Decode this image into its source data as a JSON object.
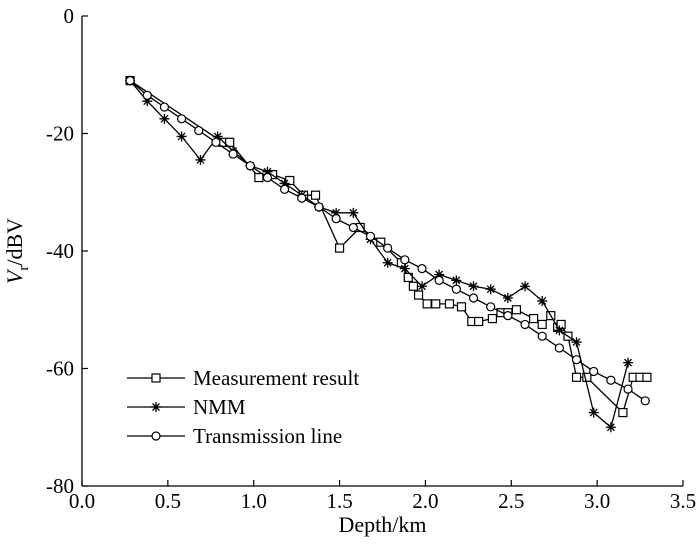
{
  "chart_data": {
    "type": "line",
    "title": "",
    "xlabel": "Depth/km",
    "ylabel_main": "V",
    "ylabel_sub": "r",
    "ylabel_unit": "/dBV",
    "xlim": [
      0.0,
      3.5
    ],
    "ylim": [
      -80,
      0
    ],
    "x_ticks": [
      0.0,
      0.5,
      1.0,
      1.5,
      2.0,
      2.5,
      3.0,
      3.5
    ],
    "x_tick_labels": [
      "0.0",
      "0.5",
      "1.0",
      "1.5",
      "2.0",
      "2.5",
      "3.0",
      "3.5"
    ],
    "y_ticks": [
      0,
      -20,
      -40,
      -60,
      -80
    ],
    "y_tick_labels": [
      "0",
      "-20",
      "-40",
      "-60",
      "-80"
    ],
    "grid": false,
    "legend_position": "bottom-left",
    "series": [
      {
        "name": "Measurement result",
        "marker": "square",
        "x": [
          0.28,
          0.82,
          0.86,
          1.03,
          1.11,
          1.21,
          1.29,
          1.36,
          1.5,
          1.62,
          1.74,
          1.86,
          1.9,
          1.93,
          1.96,
          2.01,
          2.06,
          2.14,
          2.21,
          2.27,
          2.31,
          2.39,
          2.44,
          2.48,
          2.53,
          2.63,
          2.68,
          2.73,
          2.77,
          2.79,
          2.83,
          2.88,
          2.94,
          3.15,
          3.21,
          3.25,
          3.29
        ],
        "y": [
          -11.0,
          -21.5,
          -21.5,
          -27.5,
          -27.0,
          -28.0,
          -30.5,
          -30.5,
          -39.5,
          -36.0,
          -38.5,
          -42.0,
          -44.5,
          -46.0,
          -47.5,
          -49.0,
          -49.0,
          -49.0,
          -49.5,
          -52.0,
          -52.0,
          -51.5,
          -50.5,
          -50.5,
          -50.0,
          -51.5,
          -52.5,
          -51.0,
          -53.0,
          -52.5,
          -54.5,
          -61.5,
          -61.5,
          -67.5,
          -61.5,
          -61.5,
          -61.5
        ]
      },
      {
        "name": "NMM",
        "marker": "star",
        "x": [
          0.28,
          0.38,
          0.48,
          0.58,
          0.69,
          0.79,
          0.88,
          0.98,
          1.08,
          1.18,
          1.28,
          1.38,
          1.48,
          1.58,
          1.68,
          1.78,
          1.88,
          1.98,
          2.08,
          2.18,
          2.28,
          2.38,
          2.48,
          2.58,
          2.68,
          2.78,
          2.88,
          2.98,
          3.08,
          3.18
        ],
        "y": [
          -11.0,
          -14.5,
          -17.5,
          -20.5,
          -24.5,
          -20.5,
          -23.0,
          -25.5,
          -26.5,
          -28.5,
          -30.5,
          -32.5,
          -33.5,
          -33.5,
          -38.0,
          -42.0,
          -43.0,
          -46.0,
          -44.0,
          -45.0,
          -46.0,
          -46.5,
          -48.0,
          -46.0,
          -48.5,
          -53.5,
          -55.5,
          -67.5,
          -70.0,
          -59.0
        ]
      },
      {
        "name": "Transmission line",
        "marker": "circle",
        "x": [
          0.28,
          0.38,
          0.48,
          0.58,
          0.68,
          0.78,
          0.88,
          0.98,
          1.08,
          1.18,
          1.28,
          1.38,
          1.48,
          1.58,
          1.68,
          1.78,
          1.88,
          1.98,
          2.08,
          2.18,
          2.28,
          2.38,
          2.48,
          2.58,
          2.68,
          2.78,
          2.88,
          2.98,
          3.08,
          3.18,
          3.28
        ],
        "y": [
          -11.0,
          -13.5,
          -15.5,
          -17.5,
          -19.5,
          -21.5,
          -23.5,
          -25.5,
          -27.5,
          -29.5,
          -31.0,
          -32.5,
          -34.5,
          -36.0,
          -37.5,
          -39.5,
          -41.5,
          -43.0,
          -45.0,
          -46.5,
          -48.0,
          -49.5,
          -51.0,
          -52.5,
          -54.5,
          -56.5,
          -58.5,
          -60.5,
          -62.0,
          -63.5,
          -65.5
        ]
      }
    ]
  }
}
